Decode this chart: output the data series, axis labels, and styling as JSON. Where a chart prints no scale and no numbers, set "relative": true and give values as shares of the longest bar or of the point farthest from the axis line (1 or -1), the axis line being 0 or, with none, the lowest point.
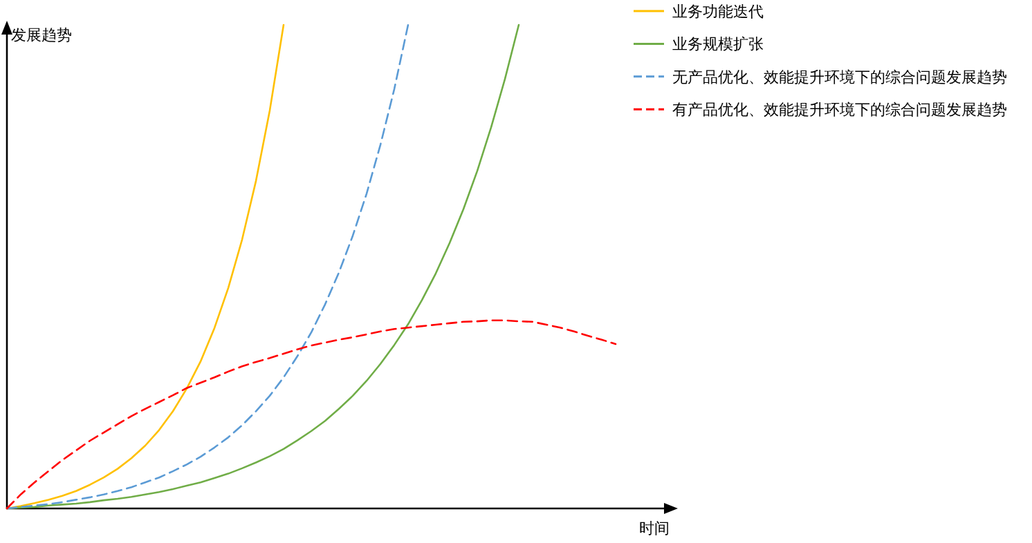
{
  "chart_data": {
    "type": "line",
    "relative": true,
    "xlabel": "时间",
    "ylabel": "发展趋势",
    "legend": "top right",
    "categories": [
      null,
      null,
      null,
      null,
      null,
      null,
      null,
      null,
      null,
      null,
      null,
      null,
      null,
      null,
      null,
      null,
      null,
      null,
      null,
      null,
      null,
      null,
      null,
      null,
      null,
      null,
      null,
      null,
      null,
      null,
      null,
      null,
      null,
      null,
      null,
      null,
      null,
      null,
      null,
      null,
      null,
      null,
      null,
      null,
      null
    ],
    "series": [
      {
        "name": "业务功能迭代",
        "color": "#ffc000",
        "line_style": "solid",
        "values": [
          0,
          0.005,
          0.011,
          0.018,
          0.026,
          0.036,
          0.049,
          0.064,
          0.082,
          0.104,
          0.13,
          0.162,
          0.201,
          0.248,
          0.304,
          0.373,
          0.456,
          0.556,
          0.677,
          0.823,
          1,
          null,
          null,
          null,
          null,
          null,
          null,
          null,
          null,
          null,
          null,
          null,
          null,
          null,
          null,
          null,
          null,
          null,
          null,
          null,
          null,
          null,
          null,
          null,
          null
        ]
      },
      {
        "name": "业务规模扩张",
        "color": "#70ad47",
        "line_style": "solid",
        "values": [
          0,
          0.002,
          0.003,
          0.006,
          0.008,
          0.01,
          0.013,
          0.017,
          0.02,
          0.024,
          0.029,
          0.034,
          0.04,
          0.047,
          0.054,
          0.063,
          0.072,
          0.083,
          0.095,
          0.108,
          0.123,
          0.141,
          0.16,
          0.181,
          0.206,
          0.233,
          0.264,
          0.299,
          0.338,
          0.381,
          0.431,
          0.486,
          0.549,
          0.619,
          0.698,
          0.788,
          0.888,
          1,
          null,
          null,
          null,
          null,
          null,
          null,
          null
        ]
      },
      {
        "name": "无产品优化、效能提升环境下的综合问题发展趋势",
        "color": "#5b9bd5",
        "line_style": "dashed",
        "values": [
          0,
          0.003,
          0.006,
          0.009,
          0.013,
          0.018,
          0.023,
          0.029,
          0.036,
          0.044,
          0.054,
          0.064,
          0.077,
          0.091,
          0.107,
          0.126,
          0.147,
          0.172,
          0.201,
          0.233,
          0.271,
          0.315,
          0.364,
          0.422,
          0.488,
          0.564,
          0.651,
          0.752,
          0.867,
          1,
          null,
          null,
          null,
          null,
          null,
          null,
          null,
          null,
          null,
          null,
          null,
          null,
          null,
          null,
          null
        ]
      },
      {
        "name": "有产品优化、效能提升环境下的综合问题发展趋势",
        "color": "#ff0000",
        "line_style": "dashed",
        "values": [
          0,
          0.029,
          0.054,
          0.077,
          0.1,
          0.12,
          0.14,
          0.157,
          0.174,
          0.191,
          0.206,
          0.22,
          0.234,
          0.249,
          0.26,
          0.271,
          0.283,
          0.294,
          0.303,
          0.311,
          0.32,
          0.329,
          0.337,
          0.343,
          0.349,
          0.354,
          0.36,
          0.366,
          0.371,
          0.374,
          0.377,
          0.38,
          0.383,
          0.386,
          0.387,
          0.389,
          0.389,
          0.387,
          0.386,
          0.38,
          0.374,
          0.366,
          0.357,
          0.349,
          0.34
        ]
      }
    ]
  }
}
